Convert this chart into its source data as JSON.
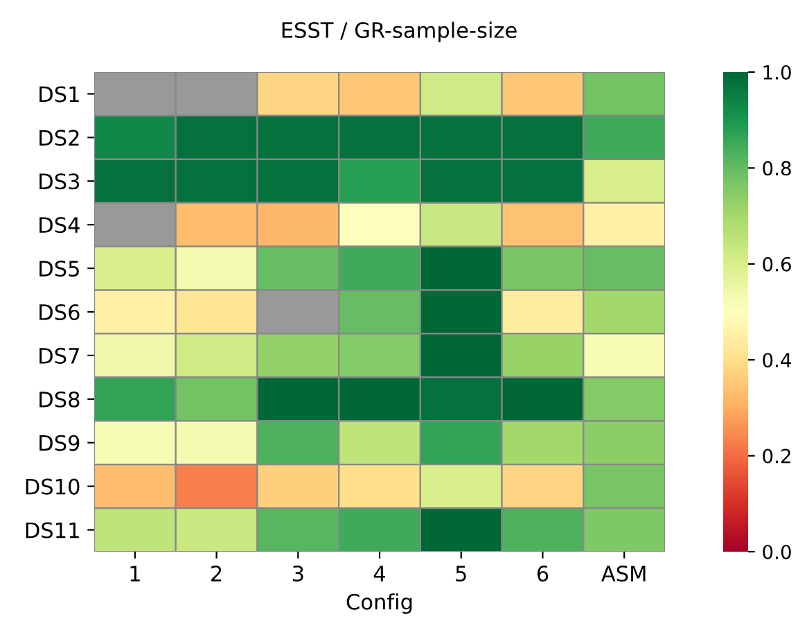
{
  "chart_data": {
    "type": "heatmap",
    "title": "ESST / GR-sample-size",
    "xlabel": "Config",
    "categories": [
      "1",
      "2",
      "3",
      "4",
      "5",
      "6",
      "ASM"
    ],
    "y_categories": [
      "DS1",
      "DS2",
      "DS3",
      "DS4",
      "DS5",
      "DS6",
      "DS7",
      "DS8",
      "DS9",
      "DS10",
      "DS11"
    ],
    "cells": [
      [
        null,
        null,
        0.38,
        0.35,
        0.62,
        0.35,
        0.78
      ],
      [
        0.93,
        0.98,
        0.98,
        0.98,
        0.98,
        0.98,
        0.85
      ],
      [
        0.98,
        0.98,
        0.98,
        0.88,
        0.98,
        0.98,
        0.6
      ],
      [
        null,
        0.33,
        0.32,
        0.5,
        0.63,
        0.34,
        0.45
      ],
      [
        0.6,
        0.53,
        0.8,
        0.85,
        1.0,
        0.77,
        0.8
      ],
      [
        0.45,
        0.42,
        null,
        0.8,
        1.0,
        0.44,
        0.7
      ],
      [
        0.54,
        0.62,
        0.73,
        0.75,
        1.0,
        0.72,
        0.52
      ],
      [
        0.87,
        0.78,
        1.0,
        1.0,
        0.98,
        1.0,
        0.75
      ],
      [
        0.52,
        0.53,
        0.83,
        0.65,
        0.87,
        0.7,
        0.74
      ],
      [
        0.33,
        0.23,
        0.37,
        0.4,
        0.6,
        0.38,
        0.77
      ],
      [
        0.65,
        0.63,
        0.82,
        0.85,
        1.0,
        0.83,
        0.76
      ]
    ],
    "clim": [
      0.0,
      1.0
    ],
    "cticks": [
      {
        "value": 0,
        "label": "0.0"
      },
      0.2,
      0.4,
      0.6,
      0.8,
      {
        "value": 1,
        "label": "1.0"
      }
    ]
  }
}
